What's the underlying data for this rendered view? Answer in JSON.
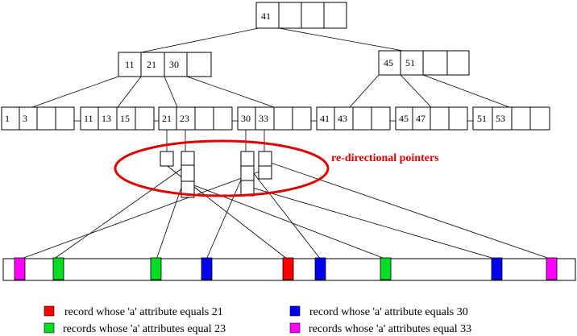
{
  "colors": {
    "red": "#ff0000",
    "green": "#00dd22",
    "blue": "#0000ee",
    "magenta": "#ff00ff",
    "annotation": "#dd0000"
  },
  "root": {
    "keys": [
      "41"
    ]
  },
  "internal": [
    {
      "keys": [
        "11",
        "21",
        "30"
      ]
    },
    {
      "keys": [
        "45",
        "51"
      ]
    }
  ],
  "leaves": [
    {
      "keys": [
        "1",
        "3"
      ]
    },
    {
      "keys": [
        "11",
        "13",
        "15"
      ]
    },
    {
      "keys": [
        "21",
        "23"
      ]
    },
    {
      "keys": [
        "30",
        "33"
      ]
    },
    {
      "keys": [
        "41",
        "43"
      ]
    },
    {
      "keys": [
        "45",
        "47"
      ]
    },
    {
      "keys": [
        "51",
        "53"
      ]
    }
  ],
  "annotation": "re-directional pointers",
  "file_records": [
    "magenta",
    "green",
    "green",
    "blue",
    "red",
    "blue",
    "green",
    "blue",
    "magenta"
  ],
  "legend": [
    {
      "color": "red",
      "text": "record whose 'a' attribute equals 21"
    },
    {
      "color": "blue",
      "text": "record whose 'a' attribute equals 30"
    },
    {
      "color": "green",
      "text": "records whose 'a' attributes equal 23"
    },
    {
      "color": "magenta",
      "text": "records whose 'a' attributes equal 33"
    }
  ]
}
